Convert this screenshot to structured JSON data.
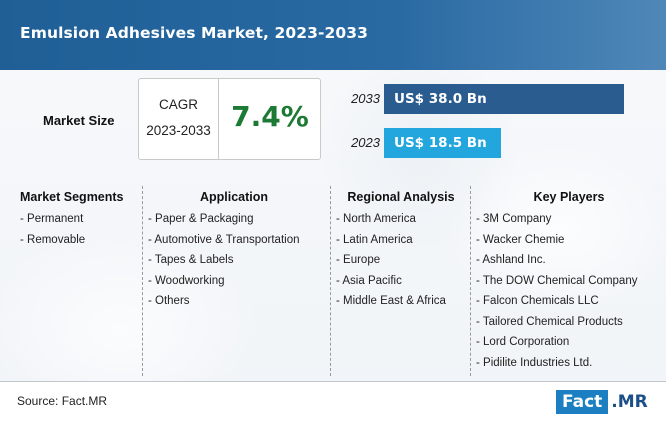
{
  "title": "Emulsion Adhesives Market, 2023-2033",
  "market_size_label": "Market Size",
  "cagr": {
    "label": "CAGR",
    "period": "2023-2033",
    "value": "7.4%"
  },
  "colors": {
    "header": "#1f5f96",
    "bar_2033": "#2a5c90",
    "bar_2023": "#22a6dd",
    "cagr_value": "#1d7a34",
    "logo": "#1b7fc1"
  },
  "chart_data": {
    "type": "bar",
    "orientation": "horizontal",
    "categories": [
      "2033",
      "2023"
    ],
    "values": [
      38.0,
      18.5
    ],
    "value_labels": [
      "US$ 38.0 Bn",
      "US$ 18.5 Bn"
    ],
    "unit": "US$ Bn",
    "xlim": [
      0,
      38.0
    ]
  },
  "columns": [
    {
      "heading": "Market Segments",
      "items": [
        "- Permanent",
        "- Removable"
      ]
    },
    {
      "heading": "Application",
      "items": [
        "- Paper & Packaging",
        "- Automotive & Transportation",
        "- Tapes & Labels",
        "- Woodworking",
        "- Others"
      ]
    },
    {
      "heading": "Regional Analysis",
      "items": [
        "- North America",
        "- Latin America",
        "- Europe",
        "- Asia Pacific",
        "- Middle East & Africa"
      ]
    },
    {
      "heading": "Key Players",
      "items": [
        "- 3M Company",
        "- Wacker Chemie",
        "- Ashland Inc.",
        "- The DOW Chemical Company",
        "- Falcon Chemicals LLC",
        "- Tailored Chemical Products",
        "- Lord Corporation",
        "- Pidilite Industries Ltd."
      ]
    }
  ],
  "footer": {
    "source": "Source: Fact.MR",
    "logo_left": "Fact",
    "logo_right": ".MR"
  }
}
